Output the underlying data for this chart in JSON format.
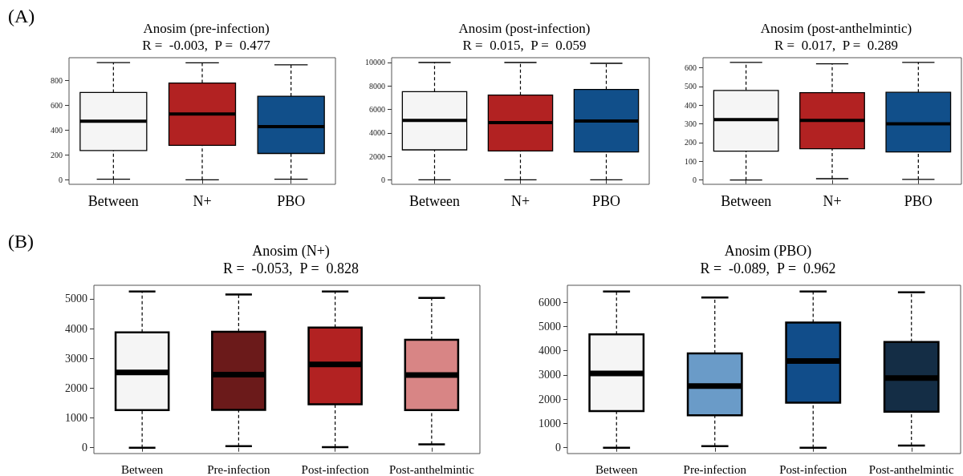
{
  "chart_data": [
    {
      "type": "box",
      "title": "Anosim (pre-infection)",
      "subtitle": "R =  -0.003,  P =  0.477",
      "annotations": [
        "(A)"
      ],
      "categories": [
        "Between",
        "N+",
        "PBO"
      ],
      "colors": [
        "#f5f5f5",
        "#b22222",
        "#114f8a"
      ],
      "ylim": [
        -37,
        985
      ],
      "yticks": [
        0,
        200,
        400,
        600,
        800
      ],
      "boxes": [
        {
          "low": 4,
          "q1": 236,
          "median": 472,
          "q3": 704,
          "high": 946
        },
        {
          "low": 0,
          "q1": 277,
          "median": 530,
          "q3": 781,
          "high": 944
        },
        {
          "low": 4,
          "q1": 212,
          "median": 429,
          "q3": 674,
          "high": 927
        }
      ]
    },
    {
      "type": "box",
      "title": "Anosim (post-infection)",
      "subtitle": "R =  0.015,  P =  0.059",
      "categories": [
        "Between",
        "N+",
        "PBO"
      ],
      "colors": [
        "#f5f5f5",
        "#b22222",
        "#114f8a"
      ],
      "ylim": [
        -387,
        10410
      ],
      "yticks": [
        0,
        2000,
        4000,
        6000,
        8000,
        10000
      ],
      "boxes": [
        {
          "low": 0,
          "q1": 2551,
          "median": 5057,
          "q3": 7517,
          "high": 10000
        },
        {
          "low": 0,
          "q1": 2460,
          "median": 4875,
          "q3": 7221,
          "high": 10000
        },
        {
          "low": 0,
          "q1": 2369,
          "median": 5012,
          "q3": 7700,
          "high": 9932
        }
      ]
    },
    {
      "type": "box",
      "title": "Anosim (post-anthelmintic)",
      "subtitle": "R =  0.017,  P =  0.289",
      "categories": [
        "Between",
        "N+",
        "PBO"
      ],
      "colors": [
        "#f5f5f5",
        "#b22222",
        "#114f8a"
      ],
      "ylim": [
        -23,
        654
      ],
      "yticks": [
        0,
        100,
        200,
        300,
        400,
        500,
        600
      ],
      "boxes": [
        {
          "low": 0,
          "q1": 154,
          "median": 323,
          "q3": 479,
          "high": 629
        },
        {
          "low": 7,
          "q1": 167,
          "median": 319,
          "q3": 467,
          "high": 621
        },
        {
          "low": 3,
          "q1": 150,
          "median": 301,
          "q3": 469,
          "high": 629
        }
      ]
    },
    {
      "type": "box",
      "title": "Anosim (N+)",
      "subtitle": "R =  -0.053,  P =  0.828",
      "annotations": [
        "(B)"
      ],
      "categories": [
        "Between",
        "Pre-infection",
        "Post-infection",
        "Post-anthelmintic"
      ],
      "colors": [
        "#f5f5f5",
        "#6b1a1a",
        "#b22222",
        "#d88585"
      ],
      "ylim": [
        -197,
        5455
      ],
      "yticks": [
        0,
        1000,
        2000,
        3000,
        4000,
        5000
      ],
      "boxes": [
        {
          "low": 0,
          "q1": 1263,
          "median": 2526,
          "q3": 3871,
          "high": 5248
        },
        {
          "low": 52,
          "q1": 1273,
          "median": 2453,
          "q3": 3892,
          "high": 5145
        },
        {
          "low": 21,
          "q1": 1460,
          "median": 2795,
          "q3": 4037,
          "high": 5248
        },
        {
          "low": 114,
          "q1": 1263,
          "median": 2443,
          "q3": 3623,
          "high": 5031
        }
      ]
    },
    {
      "type": "box",
      "title": "Anosim (PBO)",
      "subtitle": "R =  -0.089,  P =  0.962",
      "categories": [
        "Between",
        "Pre-infection",
        "Post-infection",
        "Post-anthelmintic"
      ],
      "colors": [
        "#f5f5f5",
        "#6a9bc8",
        "#114d8a",
        "#142d45"
      ],
      "ylim": [
        -241,
        6698
      ],
      "yticks": [
        0,
        1000,
        2000,
        3000,
        4000,
        5000,
        6000
      ],
      "boxes": [
        {
          "low": 0,
          "q1": 1512,
          "median": 3063,
          "q3": 4677,
          "high": 6444
        },
        {
          "low": 64,
          "q1": 1335,
          "median": 2542,
          "q3": 3889,
          "high": 6190
        },
        {
          "low": 0,
          "q1": 1856,
          "median": 3572,
          "q3": 5160,
          "high": 6444
        },
        {
          "low": 89,
          "q1": 1487,
          "median": 2873,
          "q3": 4360,
          "high": 6406
        }
      ]
    }
  ]
}
